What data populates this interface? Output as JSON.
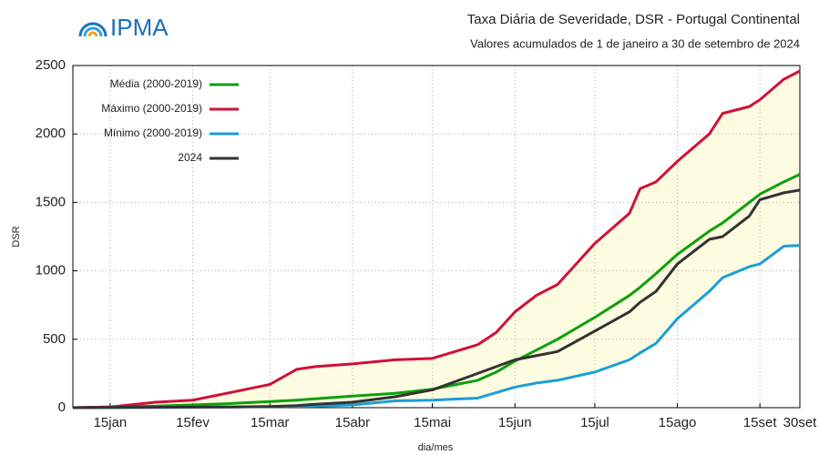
{
  "logo": "IPMA",
  "chart_data": {
    "type": "line",
    "title": "Taxa Diária de Severidade, DSR - Portugal Continental",
    "subtitle": "Valores acumulados de 1 de janeiro a 30 de setembro de 2024",
    "x_label": "dia/mes",
    "y_label": "DSR",
    "x": [
      1,
      15,
      32,
      46,
      60,
      75,
      85,
      92,
      106,
      122,
      136,
      153,
      160,
      167,
      175,
      183,
      197,
      210,
      214,
      220,
      228,
      240,
      245,
      255,
      259,
      268,
      274
    ],
    "xlim": [
      1,
      274
    ],
    "xticks": [
      {
        "value": 15,
        "label": "15jan"
      },
      {
        "value": 46,
        "label": "15fev"
      },
      {
        "value": 75,
        "label": "15mar"
      },
      {
        "value": 106,
        "label": "15abr"
      },
      {
        "value": 136,
        "label": "15mai"
      },
      {
        "value": 167,
        "label": "15jun"
      },
      {
        "value": 197,
        "label": "15jul"
      },
      {
        "value": 228,
        "label": "15ago"
      },
      {
        "value": 259,
        "label": "15set"
      },
      {
        "value": 274,
        "label": "30set"
      }
    ],
    "ylim": [
      0,
      2500
    ],
    "yticks": [
      0,
      500,
      1000,
      1500,
      2000,
      2500
    ],
    "grid": true,
    "band_color": "#fdfbe0",
    "series": [
      {
        "name": "Média (2000-2019)",
        "color": "#0ca10c",
        "values": [
          0,
          5,
          12,
          20,
          30,
          45,
          55,
          65,
          85,
          105,
          135,
          200,
          260,
          340,
          420,
          500,
          660,
          820,
          880,
          980,
          1120,
          1290,
          1350,
          1500,
          1560,
          1650,
          1705
        ]
      },
      {
        "name": "Máximo (2000-2019)",
        "color": "#d0103a",
        "values": [
          0,
          5,
          40,
          55,
          110,
          170,
          280,
          300,
          320,
          350,
          360,
          460,
          550,
          700,
          820,
          900,
          1200,
          1420,
          1600,
          1650,
          1800,
          2000,
          2150,
          2200,
          2250,
          2400,
          2460
        ]
      },
      {
        "name": "Mínimo (2000-2019)",
        "color": "#1a9ed8",
        "values": [
          0,
          0,
          2,
          3,
          5,
          8,
          10,
          12,
          20,
          50,
          55,
          70,
          110,
          150,
          180,
          200,
          260,
          350,
          400,
          470,
          650,
          850,
          950,
          1030,
          1050,
          1180,
          1185
        ]
      },
      {
        "name": "2024",
        "color": "#333333",
        "values": [
          0,
          2,
          3,
          4,
          5,
          8,
          15,
          25,
          40,
          80,
          130,
          250,
          300,
          350,
          380,
          410,
          560,
          700,
          770,
          850,
          1050,
          1230,
          1250,
          1400,
          1520,
          1570,
          1590
        ]
      }
    ]
  }
}
